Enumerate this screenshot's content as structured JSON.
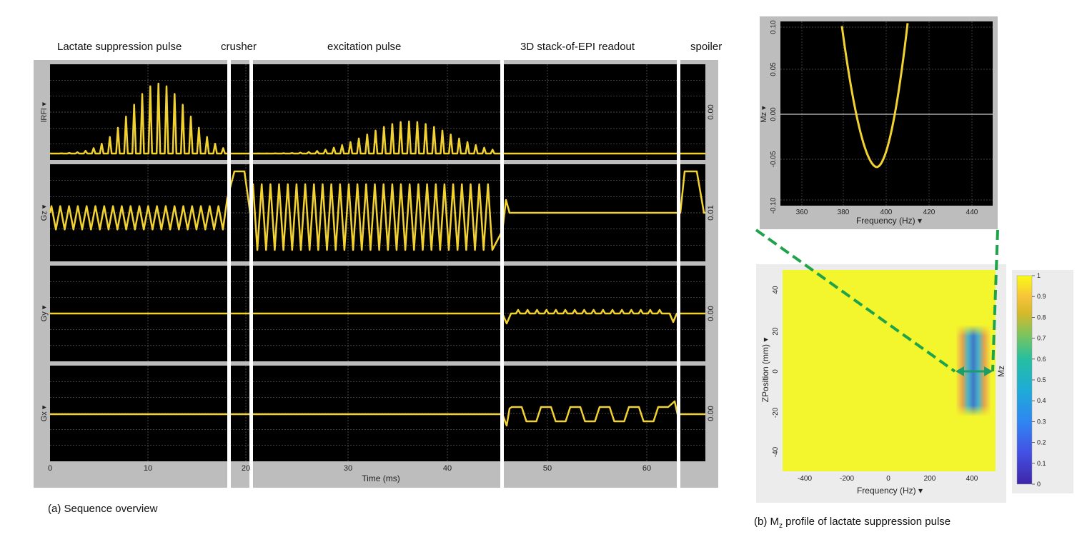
{
  "sections": {
    "lactate": "Lactate suppression pulse",
    "crusher": "crusher",
    "excitation": "excitation pulse",
    "readout": "3D stack-of-EPI readout",
    "spoiler": "spoiler"
  },
  "sequence": {
    "rows": [
      {
        "name": "lRFl",
        "value": "0.00"
      },
      {
        "name": "Gz",
        "value": "0.01"
      },
      {
        "name": "Gy",
        "value": "0.00"
      },
      {
        "name": "Gx",
        "value": "0.00"
      }
    ],
    "x_ticks": [
      "0",
      "10",
      "20",
      "30",
      "40",
      "50",
      "60"
    ],
    "x_tick_values": [
      0,
      10,
      20,
      30,
      40,
      50,
      60
    ],
    "x_label": "Time (ms)",
    "x_range": [
      0,
      67
    ],
    "caption": "(a) Sequence overview",
    "trace_color": "#f2d230"
  },
  "zoom": {
    "y_label": "Mz",
    "y_ticks": [
      "-0.10",
      "-0.05",
      "0.00",
      "0.05",
      "0.10"
    ],
    "x_ticks": [
      "360",
      "380",
      "400",
      "420",
      "440"
    ],
    "x_label": "Frequency (Hz)",
    "x_range": [
      350,
      450
    ],
    "y_range": [
      -0.1,
      0.1
    ]
  },
  "profile": {
    "y_label": "ZPosition (mm)",
    "y_ticks": [
      "40",
      "20",
      "0",
      "-20",
      "-40"
    ],
    "x_ticks": [
      "-400",
      "-200",
      "0",
      "200",
      "400"
    ],
    "x_label": "Frequency (Hz)",
    "side_label": "Mz",
    "caption_prefix": "(b) M",
    "caption_sub": "z",
    "caption_suffix": " profile of lactate suppression pulse"
  },
  "colorbar": {
    "ticks": [
      "1",
      "0.9",
      "0.8",
      "0.7",
      "0.6",
      "0.5",
      "0.4",
      "0.3",
      "0.2",
      "0.1",
      "0"
    ]
  },
  "colors": {
    "panel_bg": "#000000",
    "frame": "#bdbdbd",
    "yellow": "#f2d230",
    "green_dash": "#1fa34a",
    "arrow": "#1a9e6a"
  }
}
